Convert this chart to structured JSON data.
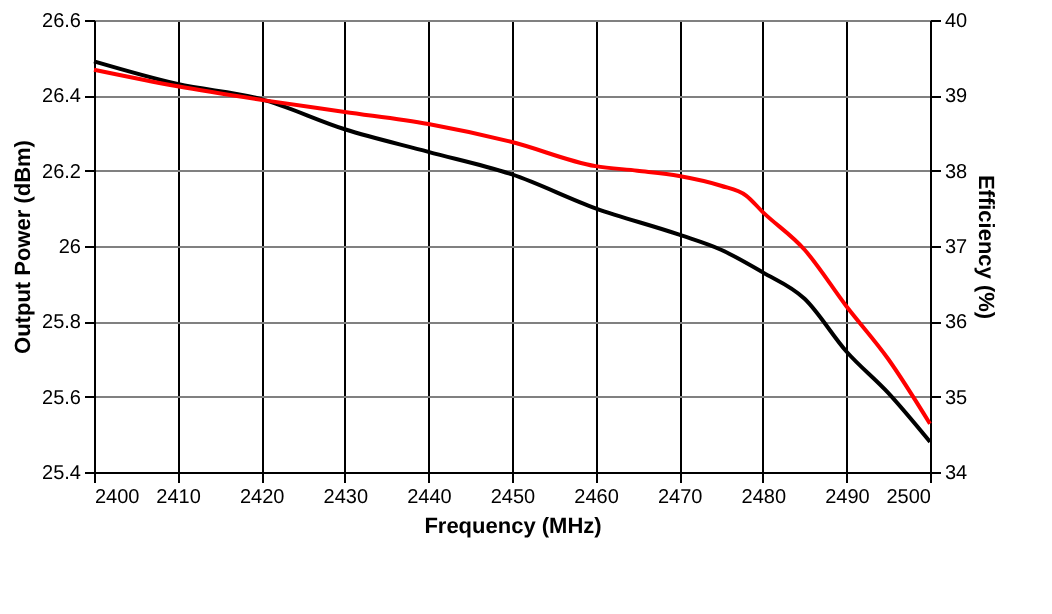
{
  "chart_data": {
    "type": "line",
    "xlabel": "Frequency (MHz)",
    "ylabel": "Output Power (dBm)",
    "y2label": "Efficiency (%)",
    "xlim": [
      2400,
      2500
    ],
    "xticks": [
      2400,
      2410,
      2420,
      2430,
      2440,
      2450,
      2460,
      2470,
      2480,
      2490,
      2500
    ],
    "ylim": [
      25.4,
      26.6
    ],
    "yticks": [
      25.4,
      25.6,
      25.8,
      26,
      26.2,
      26.4,
      26.6
    ],
    "y2lim": [
      34,
      40
    ],
    "y2ticks": [
      34,
      35,
      36,
      37,
      38,
      39,
      40
    ],
    "grid": true,
    "series": [
      {
        "color": "#000000",
        "x": [
          2400,
          2410,
          2420,
          2430,
          2440,
          2450,
          2460,
          2470,
          2475,
          2480,
          2485,
          2490,
          2495,
          2500
        ],
        "values": [
          26.49,
          26.43,
          26.39,
          26.31,
          26.25,
          26.19,
          26.1,
          26.03,
          25.99,
          25.93,
          25.86,
          25.72,
          25.61,
          25.48
        ]
      },
      {
        "color": "#ff0000",
        "axis": "y2",
        "x": [
          2400,
          2410,
          2420,
          2430,
          2440,
          2450,
          2460,
          2465,
          2470,
          2475,
          2478,
          2480,
          2485,
          2490,
          2495,
          2500
        ],
        "values": [
          39.34,
          39.12,
          38.94,
          38.78,
          38.62,
          38.38,
          38.06,
          38.0,
          37.93,
          37.8,
          37.67,
          37.45,
          36.95,
          36.2,
          35.5,
          34.64
        ]
      }
    ]
  }
}
